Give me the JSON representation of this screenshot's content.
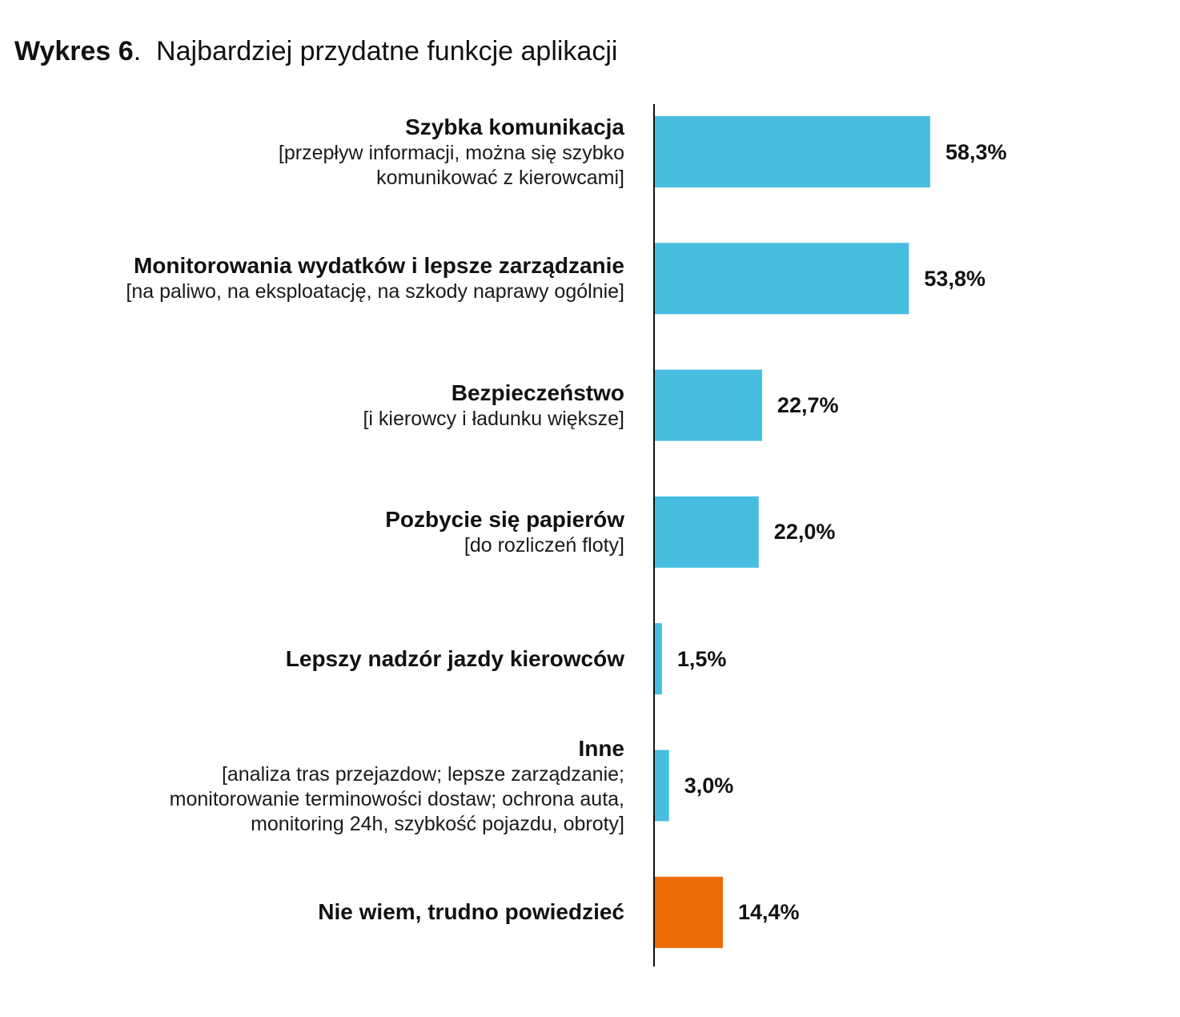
{
  "title": {
    "prefix": "Wykres 6",
    "text": "Najbardziej przydatne funkcje aplikacji"
  },
  "colors": {
    "primary_bar": "#47BDE0",
    "highlight_bar": "#EC6B05",
    "axis": "#111111"
  },
  "chart_data": {
    "type": "bar",
    "orientation": "horizontal",
    "categories": [
      {
        "label": "Szybka komunikacja",
        "sublabel": "[przepływ informacji, można się szybko\nkomunikować z kierowcami]",
        "value": 58.3,
        "value_label": "58,3%",
        "color": "primary"
      },
      {
        "label": "Monitorowania wydatków i lepsze zarządzanie",
        "sublabel": "[na paliwo, na eksploatację, na szkody naprawy ogólnie]",
        "value": 53.8,
        "value_label": "53,8%",
        "color": "primary"
      },
      {
        "label": "Bezpieczeństwo",
        "sublabel": "[i kierowcy i ładunku większe]",
        "value": 22.7,
        "value_label": "22,7%",
        "color": "primary"
      },
      {
        "label": "Pozbycie się papierów",
        "sublabel": "[do rozliczeń floty]",
        "value": 22.0,
        "value_label": "22,0%",
        "color": "primary"
      },
      {
        "label": "Lepszy nadzór jazdy kierowców",
        "sublabel": "",
        "value": 1.5,
        "value_label": "1,5%",
        "color": "primary"
      },
      {
        "label": "Inne",
        "sublabel": "[analiza tras przejazdow; lepsze zarządzanie;\nmonitorowanie terminowości dostaw; ochrona auta,\nmonitoring 24h, szybkość pojazdu, obroty]",
        "value": 3.0,
        "value_label": "3,0%",
        "color": "primary"
      },
      {
        "label": "Nie wiem, trudno powiedzieć",
        "sublabel": "",
        "value": 14.4,
        "value_label": "14,4%",
        "color": "highlight"
      }
    ],
    "unit": "%",
    "grid": false,
    "legend": "none"
  }
}
